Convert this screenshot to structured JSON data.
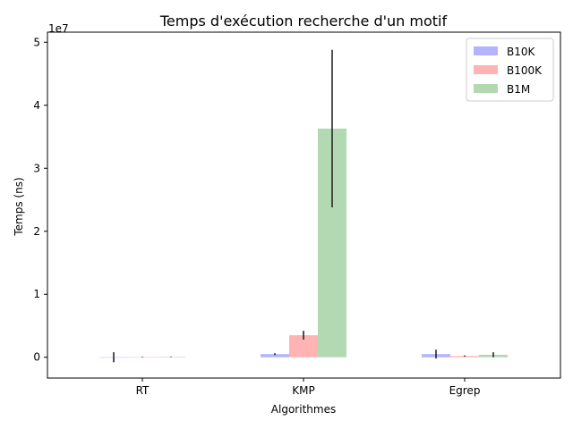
{
  "chart_data": {
    "type": "bar",
    "title": "Temps d'exécution recherche d'un motif",
    "xlabel": "Algorithmes",
    "ylabel": "Temps (ns)",
    "y_scale_label": "1e7",
    "categories": [
      "RT",
      "KMP",
      "Egrep"
    ],
    "series": [
      {
        "name": "B10K",
        "color": "#b3b3ff",
        "values": [
          1000,
          500000,
          500000
        ],
        "errors": [
          800000,
          150000,
          700000
        ]
      },
      {
        "name": "B100K",
        "color": "#ffb3b3",
        "values": [
          20000,
          3500000,
          200000
        ],
        "errors": [
          50000,
          700000,
          100000
        ]
      },
      {
        "name": "B1M",
        "color": "#b3d9b3",
        "values": [
          80000,
          36300000,
          400000
        ],
        "errors": [
          50000,
          12500000,
          400000
        ]
      }
    ],
    "ylim": [
      -3300000,
      51600000
    ],
    "yticks": [
      0,
      10000000,
      20000000,
      30000000,
      40000000,
      50000000
    ],
    "ytick_labels": [
      "0",
      "1",
      "2",
      "3",
      "4",
      "5"
    ],
    "legend_position": "top-right",
    "grid": false
  }
}
